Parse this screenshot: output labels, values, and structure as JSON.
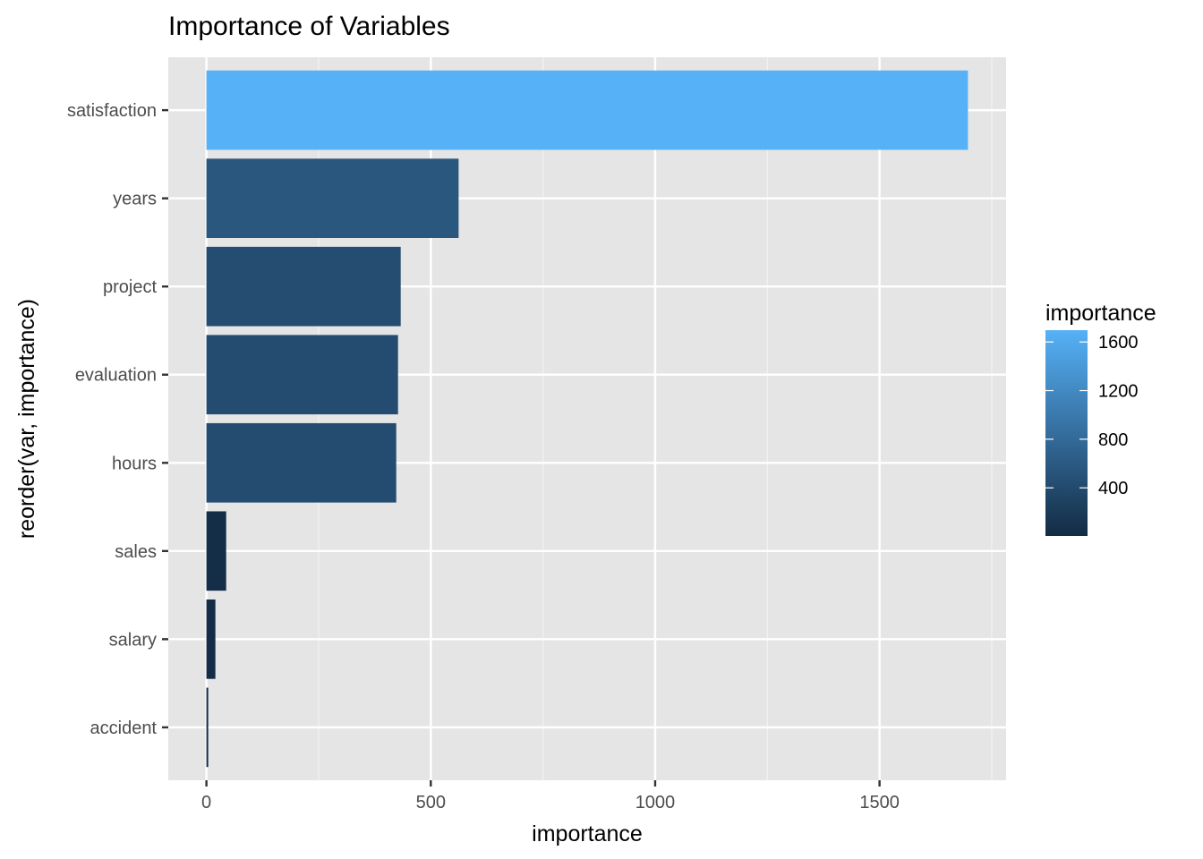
{
  "chart_data": {
    "type": "bar",
    "orientation": "horizontal",
    "title": "Importance of Variables",
    "xlabel": "importance",
    "ylabel": "reorder(var, importance)",
    "categories": [
      "accident",
      "salary",
      "sales",
      "hours",
      "evaluation",
      "project",
      "years",
      "satisfaction"
    ],
    "values": [
      4,
      20,
      44,
      423,
      427,
      433,
      562,
      1697
    ],
    "xlim": [
      -85,
      1782
    ],
    "x_ticks": [
      0,
      500,
      1000,
      1500
    ],
    "x_tick_labels": [
      "0",
      "500",
      "1000",
      "1500"
    ],
    "grid": true,
    "legend": {
      "title": "importance",
      "placement": "right",
      "type": "colorbar",
      "range": [
        4,
        1697
      ],
      "ticks": [
        400,
        800,
        1200,
        1600
      ],
      "tick_labels": [
        "400",
        "800",
        "1200",
        "1600"
      ],
      "color_low": "#132B43",
      "color_high": "#56B1F7"
    }
  },
  "colors": {
    "panel_background": "#e5e5e5",
    "grid_major": "#ffffff",
    "grid_minor": "#f2f2f2",
    "tick_text": "#4d4d4d",
    "low": "#132B43",
    "high": "#56B1F7"
  }
}
